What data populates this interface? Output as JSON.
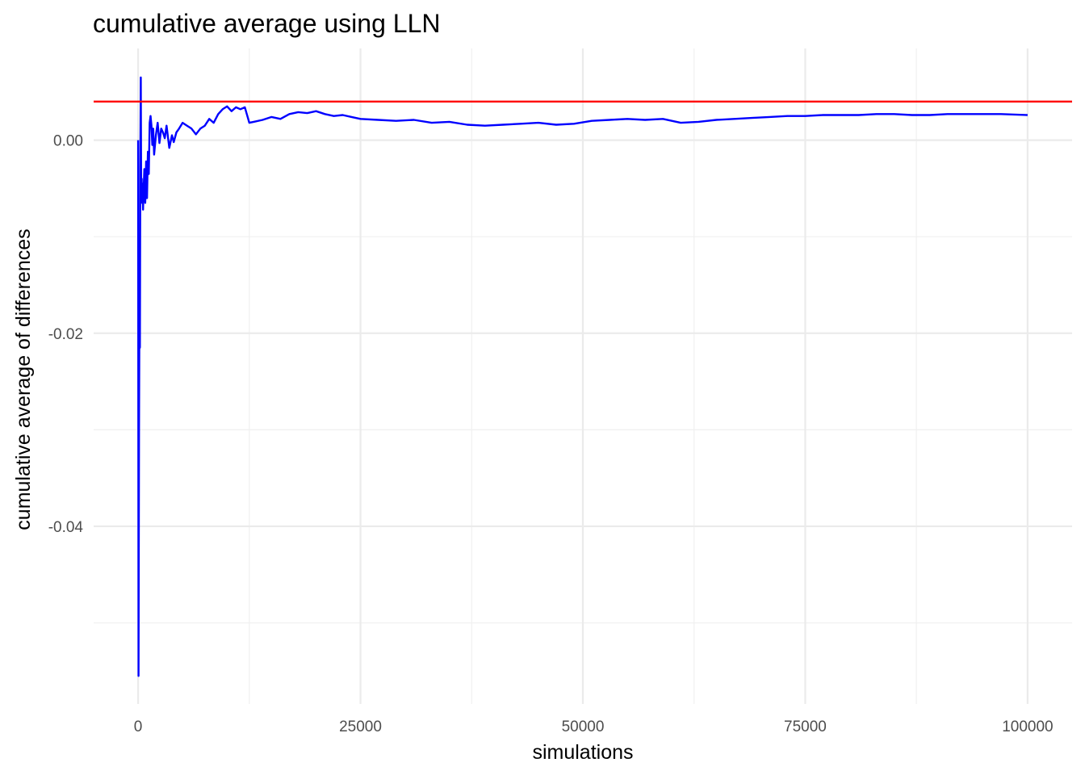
{
  "chart_data": {
    "type": "line",
    "title": "cumulative average using LLN",
    "xlabel": "simulations",
    "ylabel": "cumulative average of differences",
    "xlim": [
      -5000,
      105000
    ],
    "ylim": [
      -0.0584,
      0.0095
    ],
    "x_ticks": [
      0,
      25000,
      50000,
      75000,
      100000
    ],
    "x_tick_labels": [
      "0",
      "25000",
      "50000",
      "75000",
      "100000"
    ],
    "x_minor_ticks": [
      12500,
      37500,
      62500,
      87500
    ],
    "y_ticks": [
      0.0,
      -0.02,
      -0.04
    ],
    "y_tick_labels": [
      "0.00",
      "-0.02",
      "-0.04"
    ],
    "y_minor_ticks": [
      -0.01,
      -0.03,
      -0.05
    ],
    "grid": true,
    "reference_line": {
      "y": 0.004,
      "color": "#ff0000"
    },
    "series": [
      {
        "color": "#0000ff",
        "x": [
          1,
          50,
          100,
          150,
          200,
          250,
          300,
          350,
          400,
          450,
          500,
          550,
          600,
          700,
          800,
          900,
          1000,
          1100,
          1200,
          1300,
          1400,
          1500,
          1600,
          1700,
          1800,
          2000,
          2200,
          2400,
          2600,
          2800,
          3000,
          3200,
          3500,
          3800,
          4000,
          4300,
          4600,
          5000,
          5500,
          6000,
          6500,
          7000,
          7500,
          8000,
          8500,
          9000,
          9500,
          10000,
          10500,
          11000,
          11500,
          12000,
          12500,
          13000,
          14000,
          15000,
          16000,
          17000,
          18000,
          19000,
          20000,
          21000,
          22000,
          23000,
          24000,
          25000,
          27000,
          29000,
          31000,
          33000,
          35000,
          37000,
          39000,
          41000,
          43000,
          45000,
          47000,
          49000,
          51000,
          53000,
          55000,
          57000,
          59000,
          61000,
          63000,
          65000,
          67000,
          69000,
          71000,
          73000,
          75000,
          77000,
          79000,
          81000,
          83000,
          85000,
          87000,
          89000,
          91000,
          93000,
          95000,
          97000,
          100000
        ],
        "y": [
          0.0,
          -0.0555,
          -0.03,
          -0.018,
          -0.0215,
          -0.003,
          0.0065,
          -0.006,
          -0.004,
          -0.0065,
          -0.0045,
          -0.0072,
          -0.0055,
          -0.003,
          -0.0065,
          -0.0022,
          -0.006,
          -0.0012,
          -0.0035,
          0.0018,
          0.0025,
          0.0015,
          -0.0005,
          0.0012,
          -0.0015,
          0.0005,
          0.0018,
          -0.0003,
          0.0012,
          0.0008,
          0.0002,
          0.0015,
          -0.0008,
          0.0005,
          -0.0002,
          0.0008,
          0.0012,
          0.0018,
          0.0015,
          0.0012,
          0.0006,
          0.0012,
          0.0015,
          0.0022,
          0.0018,
          0.0027,
          0.0032,
          0.0035,
          0.003,
          0.0034,
          0.0032,
          0.0034,
          0.0018,
          0.0019,
          0.0021,
          0.0024,
          0.0022,
          0.0027,
          0.0029,
          0.0028,
          0.003,
          0.0027,
          0.0025,
          0.0026,
          0.0024,
          0.0022,
          0.0021,
          0.002,
          0.0021,
          0.0018,
          0.0019,
          0.0016,
          0.0015,
          0.0016,
          0.0017,
          0.0018,
          0.0016,
          0.0017,
          0.002,
          0.0021,
          0.0022,
          0.0021,
          0.0022,
          0.0018,
          0.0019,
          0.0021,
          0.0022,
          0.0023,
          0.0024,
          0.0025,
          0.0025,
          0.0026,
          0.0026,
          0.0026,
          0.0027,
          0.0027,
          0.0026,
          0.0026,
          0.0027,
          0.0027,
          0.0027,
          0.0027,
          0.0026
        ]
      }
    ]
  }
}
